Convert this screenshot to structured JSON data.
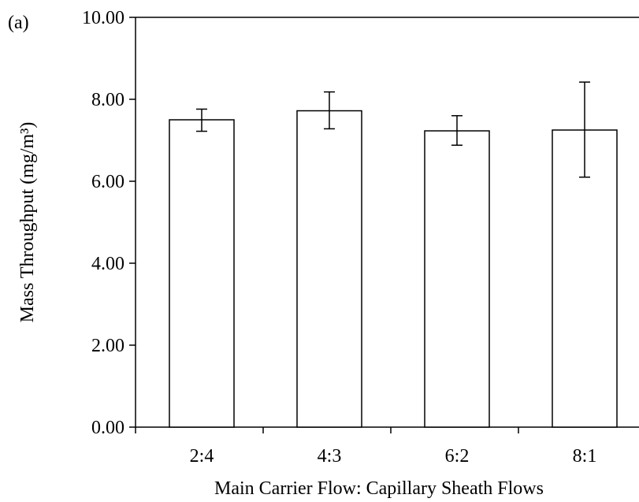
{
  "panel_label": "(a)",
  "chart_data": {
    "type": "bar",
    "categories": [
      "2:4",
      "4:3",
      "6:2",
      "8:1"
    ],
    "values": [
      7.5,
      7.72,
      7.23,
      7.25
    ],
    "error_low": [
      7.22,
      7.28,
      6.88,
      6.1
    ],
    "error_high": [
      7.76,
      8.18,
      7.6,
      8.42
    ],
    "xlabel": "Main Carrier Flow: Capillary Sheath Flows",
    "ylabel": "Mass Throughput  (mg/m³)",
    "ylim": [
      0,
      10
    ],
    "yticks": [
      "0.00",
      "2.00",
      "4.00",
      "6.00",
      "8.00",
      "10.00"
    ],
    "grid": false,
    "bar_color": "#ffffff",
    "line_color": "#000000"
  }
}
